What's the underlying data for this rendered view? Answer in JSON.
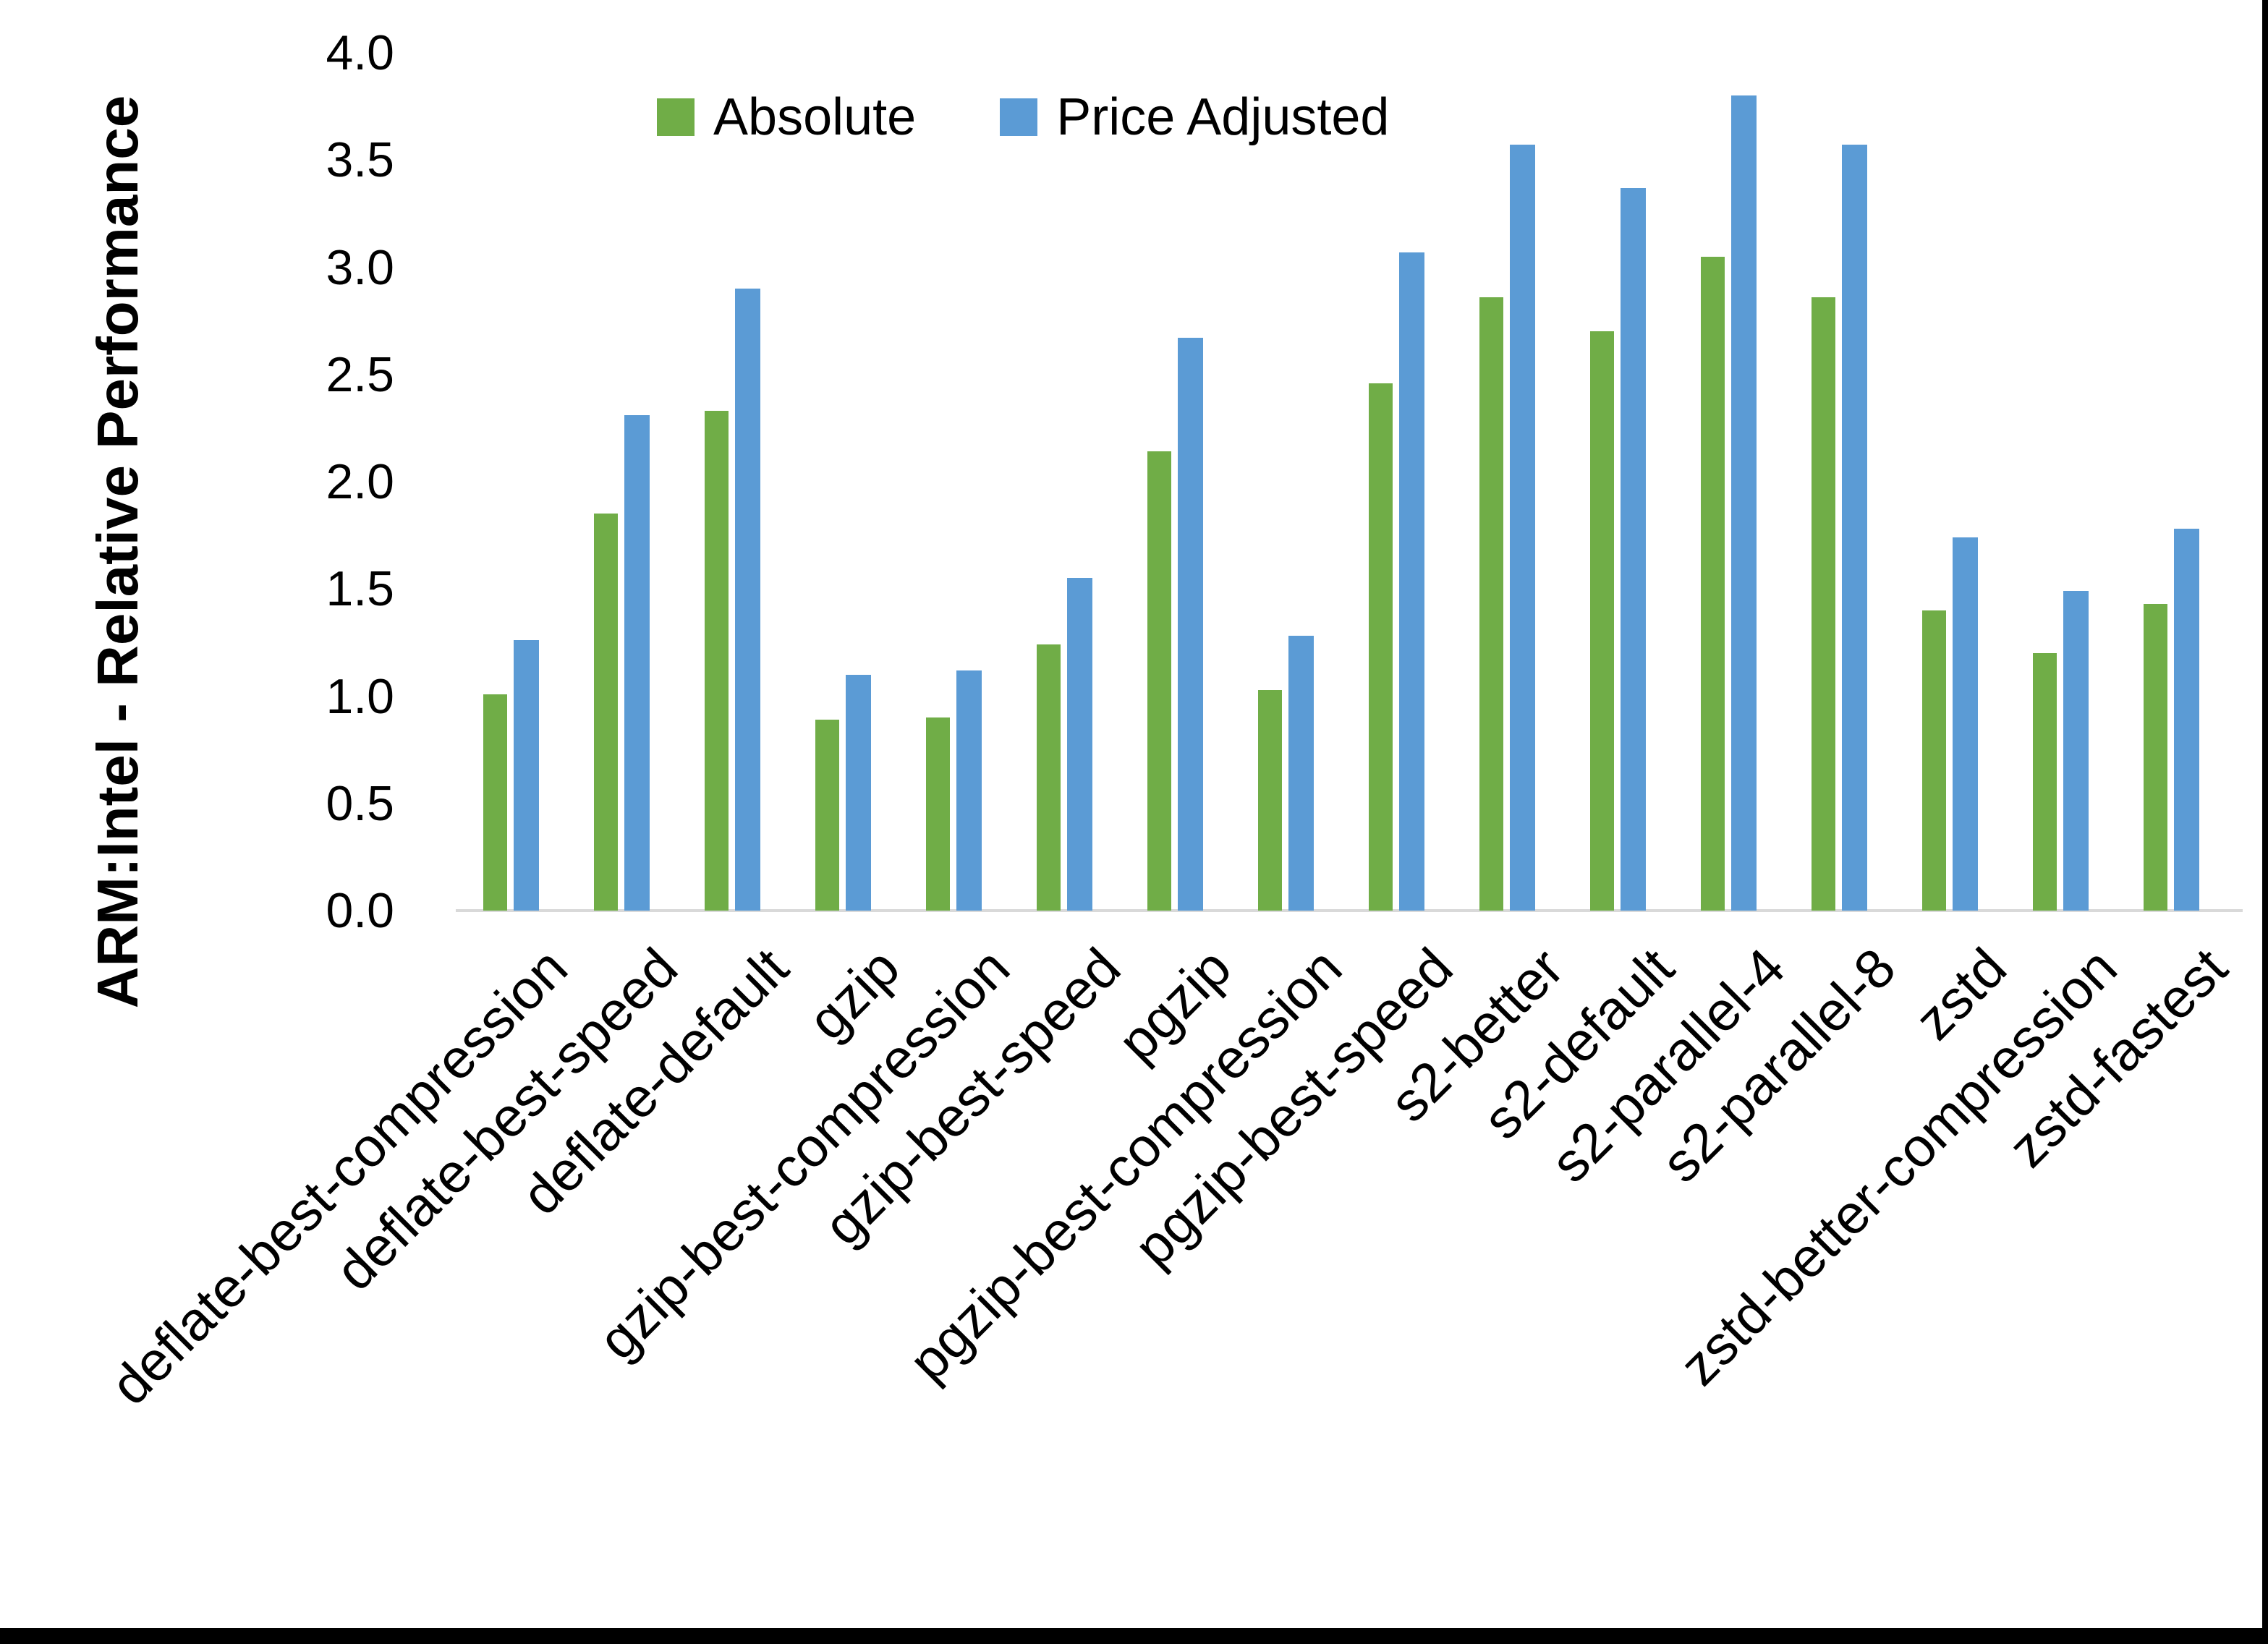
{
  "figure": {
    "background": "#FFFFFF",
    "right_border_color": "#000000",
    "bottom_border_color": "#000000"
  },
  "legend": {
    "items": [
      {
        "label": "Absolute",
        "color": "#70AD47"
      },
      {
        "label": "Price Adjusted",
        "color": "#5B9BD5"
      }
    ]
  },
  "y_axis": {
    "title": "ARM:Intel - Relative Performance",
    "tick_labels": [
      "0.0",
      "0.5",
      "1.0",
      "1.5",
      "2.0",
      "2.5",
      "3.0",
      "3.5",
      "4.0"
    ]
  },
  "chart_data": {
    "type": "bar",
    "title": "",
    "xlabel": "",
    "ylabel": "ARM:Intel - Relative Performance",
    "ylim": [
      0.0,
      4.0
    ],
    "ytick_step": 0.5,
    "grid": false,
    "legend_position": "top-center",
    "axis_line_color": "#D9D9D9",
    "categories": [
      "deflate-best-compression",
      "deflate-best-speed",
      "deflate-default",
      "gzip",
      "gzip-best-compression",
      "gzip-best-speed",
      "pgzip",
      "pgzip-best-compression",
      "pgzip-best-speed",
      "s2-better",
      "s2-default",
      "s2-parallel-4",
      "s2-parallel-8",
      "zstd",
      "zstd-better-compression",
      "zstd-fastest"
    ],
    "series": [
      {
        "name": "Absolute",
        "color": "#70AD47",
        "values": [
          1.01,
          1.85,
          2.33,
          0.89,
          0.9,
          1.24,
          2.14,
          1.03,
          2.46,
          2.86,
          2.7,
          3.05,
          2.86,
          1.4,
          1.2,
          1.43
        ]
      },
      {
        "name": "Price Adjusted",
        "color": "#5B9BD5",
        "values": [
          1.26,
          2.31,
          2.9,
          1.1,
          1.12,
          1.55,
          2.67,
          1.28,
          3.07,
          3.57,
          3.37,
          3.8,
          3.57,
          1.74,
          1.49,
          1.78
        ]
      }
    ]
  }
}
